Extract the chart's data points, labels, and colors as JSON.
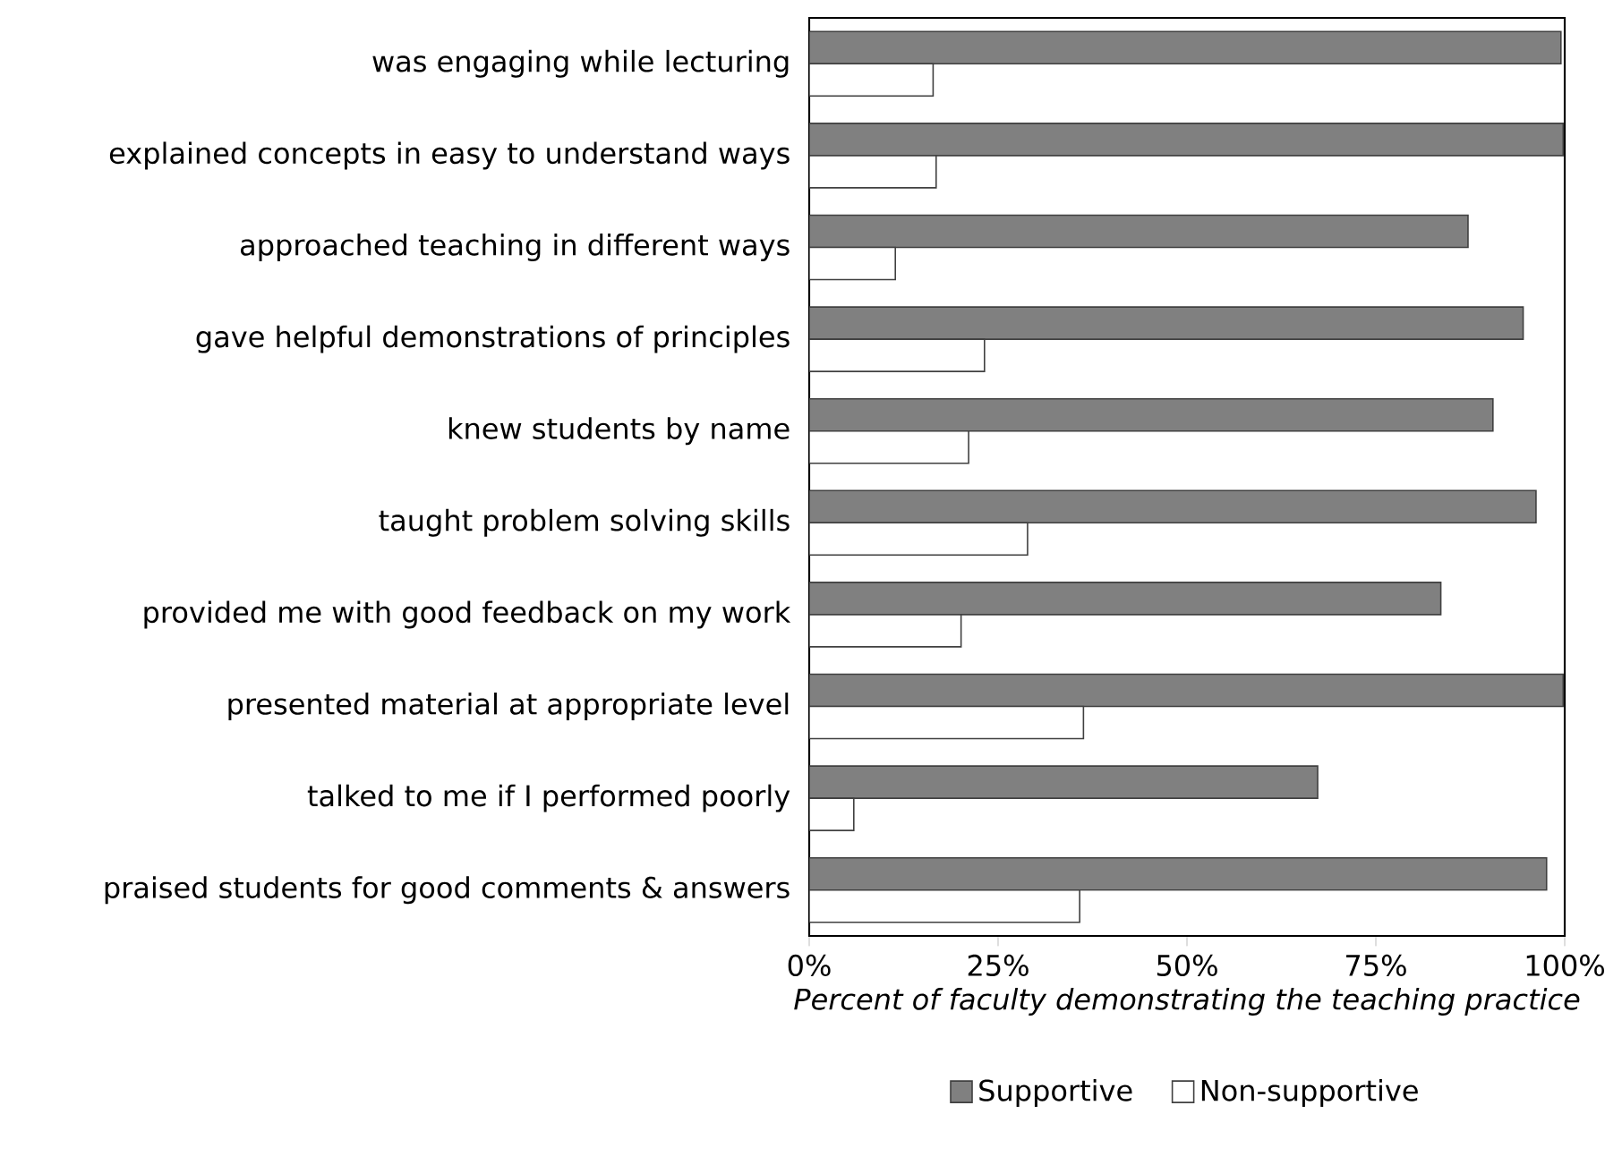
{
  "chart_data": {
    "type": "bar",
    "orientation": "horizontal",
    "xlabel": "Percent of faculty demonstrating the teaching practice",
    "categories": [
      "was engaging while lecturing",
      "explained concepts in easy to understand ways",
      "approached teaching in different ways",
      "gave helpful demonstrations of principles",
      "knew students by name",
      "taught problem solving skills",
      "provided me with good feedback on my work",
      "presented material at appropriate level",
      "talked to me if I performed poorly",
      "praised students for good comments & answers"
    ],
    "series": [
      {
        "name": "Supportive",
        "color": "#808080",
        "values": [
          99.5,
          99.8,
          87.2,
          94.5,
          90.5,
          96.2,
          83.6,
          99.8,
          67.3,
          97.6
        ]
      },
      {
        "name": "Non-supportive",
        "color": "#ffffff",
        "values": [
          16.4,
          16.8,
          11.4,
          23.2,
          21.1,
          28.9,
          20.1,
          36.3,
          5.9,
          35.8
        ]
      }
    ],
    "xlim": [
      0,
      100
    ],
    "xticks": [
      {
        "value": 0,
        "label": "0%"
      },
      {
        "value": 25,
        "label": "25%"
      },
      {
        "value": 50,
        "label": "50%"
      },
      {
        "value": 75,
        "label": "75%"
      },
      {
        "value": 100,
        "label": "100%"
      }
    ],
    "grid": false,
    "legend": "bottom"
  }
}
